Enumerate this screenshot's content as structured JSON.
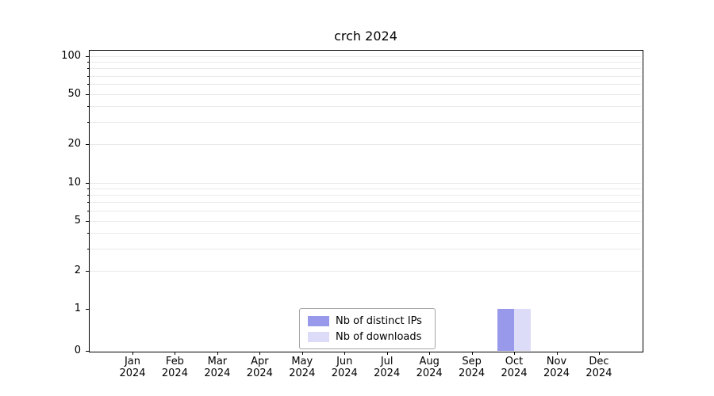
{
  "chart_data": {
    "type": "bar",
    "title": "crch 2024",
    "categories": [
      "Jan",
      "Feb",
      "Mar",
      "Apr",
      "May",
      "Jun",
      "Jul",
      "Aug",
      "Sep",
      "Oct",
      "Nov",
      "Dec"
    ],
    "year": "2024",
    "series": [
      {
        "name": "Nb of distinct IPs",
        "color": "#9999ec",
        "values": [
          0,
          0,
          0,
          0,
          0,
          0,
          0,
          0,
          0,
          1,
          0,
          0
        ]
      },
      {
        "name": "Nb of downloads",
        "color": "#dcdcf8",
        "values": [
          0,
          0,
          0,
          0,
          0,
          0,
          0,
          0,
          0,
          1,
          0,
          0
        ]
      }
    ],
    "yticks": [
      0,
      1,
      2,
      5,
      10,
      20,
      50,
      100
    ],
    "minor_grid_values": [
      2,
      3,
      4,
      5,
      6,
      7,
      8,
      9,
      10,
      20,
      30,
      40,
      50,
      60,
      70,
      80,
      90,
      100
    ],
    "yscale": "log above 1, linear 0-1",
    "ylim": [
      0,
      112
    ],
    "grid": "horizontal minor, light gray",
    "legend_position": "bottom-center"
  }
}
